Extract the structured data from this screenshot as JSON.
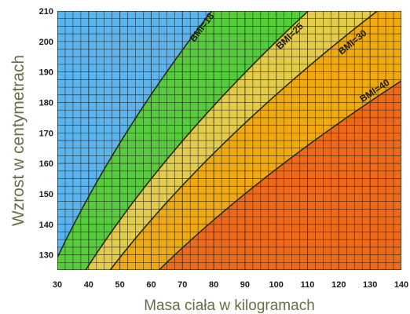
{
  "chart_data": {
    "type": "area",
    "xlabel": "Masa ciała w kilogramach",
    "ylabel": "Wzrost w centymetrach",
    "xlim": [
      30,
      140
    ],
    "ylim": [
      125,
      210
    ],
    "x_ticks": [
      30,
      40,
      50,
      60,
      70,
      80,
      90,
      100,
      110,
      120,
      130,
      140
    ],
    "y_ticks": [
      130,
      140,
      150,
      160,
      170,
      180,
      190,
      200,
      210
    ],
    "grid": true,
    "series": [
      {
        "name": "BMI=18",
        "bmi": 18,
        "label_weight": 77,
        "label_height": 204
      },
      {
        "name": "BMI=25",
        "bmi": 25,
        "label_weight": 105,
        "label_height": 201
      },
      {
        "name": "BMI=30",
        "bmi": 30,
        "label_weight": 125,
        "label_height": 199
      },
      {
        "name": "BMI=40",
        "bmi": 40,
        "label_weight": 132,
        "label_height": 183
      }
    ],
    "zone_colors": [
      "#5ab4ee",
      "#55cc3a",
      "#e3cb4c",
      "#f0aa10",
      "#ec6a1a"
    ],
    "boundary_color": "#2a2a12",
    "grid_color": "#1f1f1f"
  }
}
